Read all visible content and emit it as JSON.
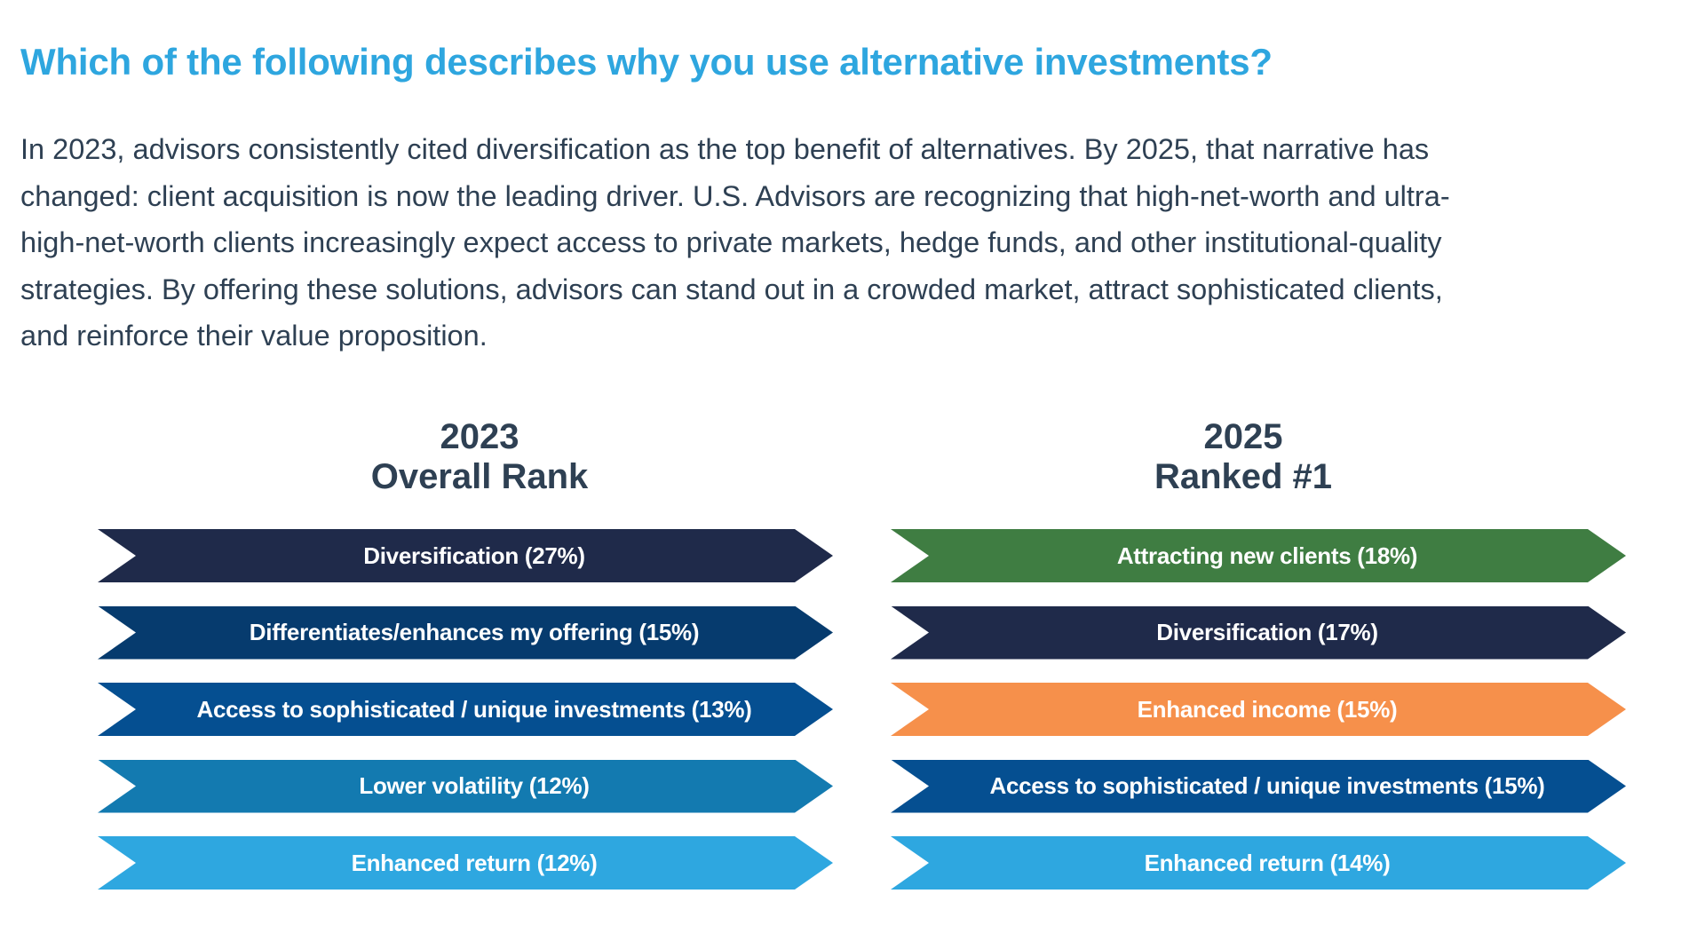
{
  "header": {
    "title": "Which of the following describes why you use alternative investments?",
    "intro_lines": [
      "In 2023, advisors consistently cited diversification as the top benefit of alternatives. By 2025, that narrative has",
      "changed: client acquisition is now the leading driver. U.S. Advisors are recognizing that high-net-worth and ultra-",
      "high-net-worth clients increasingly expect access to private markets, hedge funds, and other institutional-quality",
      "strategies. By offering these solutions, advisors can stand out in a crowded market, attract sophisticated clients,",
      "and reinforce their value proposition."
    ]
  },
  "columns": {
    "left": {
      "year": "2023",
      "subtitle": "Overall Rank",
      "bars": [
        {
          "label": "Diversification (27%)",
          "color": "#1f2a4a"
        },
        {
          "label": "Differentiates/enhances my offering (15%)",
          "color": "#063b6e"
        },
        {
          "label": "Access to sophisticated / unique investments (13%)",
          "color": "#054f91"
        },
        {
          "label": "Lower volatility (12%)",
          "color": "#137ab0"
        },
        {
          "label": "Enhanced return (12%)",
          "color": "#2ea7e0"
        }
      ]
    },
    "right": {
      "year": "2025",
      "subtitle": "Ranked #1",
      "bars": [
        {
          "label": "Attracting new clients (18%)",
          "color": "#3f7d42"
        },
        {
          "label": "Diversification (17%)",
          "color": "#1f2a4a"
        },
        {
          "label": "Enhanced income (15%)",
          "color": "#f6904b"
        },
        {
          "label": "Access to sophisticated / unique investments (15%)",
          "color": "#054f91"
        },
        {
          "label": "Enhanced return (14%)",
          "color": "#2ea7e0"
        }
      ]
    }
  },
  "chart_data": [
    {
      "type": "table",
      "title": "2023 Overall Rank",
      "categories": [
        "Diversification",
        "Differentiates/enhances my offering",
        "Access to sophisticated / unique investments",
        "Lower volatility",
        "Enhanced return"
      ],
      "values": [
        27,
        15,
        13,
        12,
        12
      ],
      "unit": "%"
    },
    {
      "type": "table",
      "title": "2025 Ranked #1",
      "categories": [
        "Attracting new clients",
        "Diversification",
        "Enhanced income",
        "Access to sophisticated / unique investments",
        "Enhanced return"
      ],
      "values": [
        18,
        17,
        15,
        15,
        14
      ],
      "unit": "%"
    }
  ]
}
